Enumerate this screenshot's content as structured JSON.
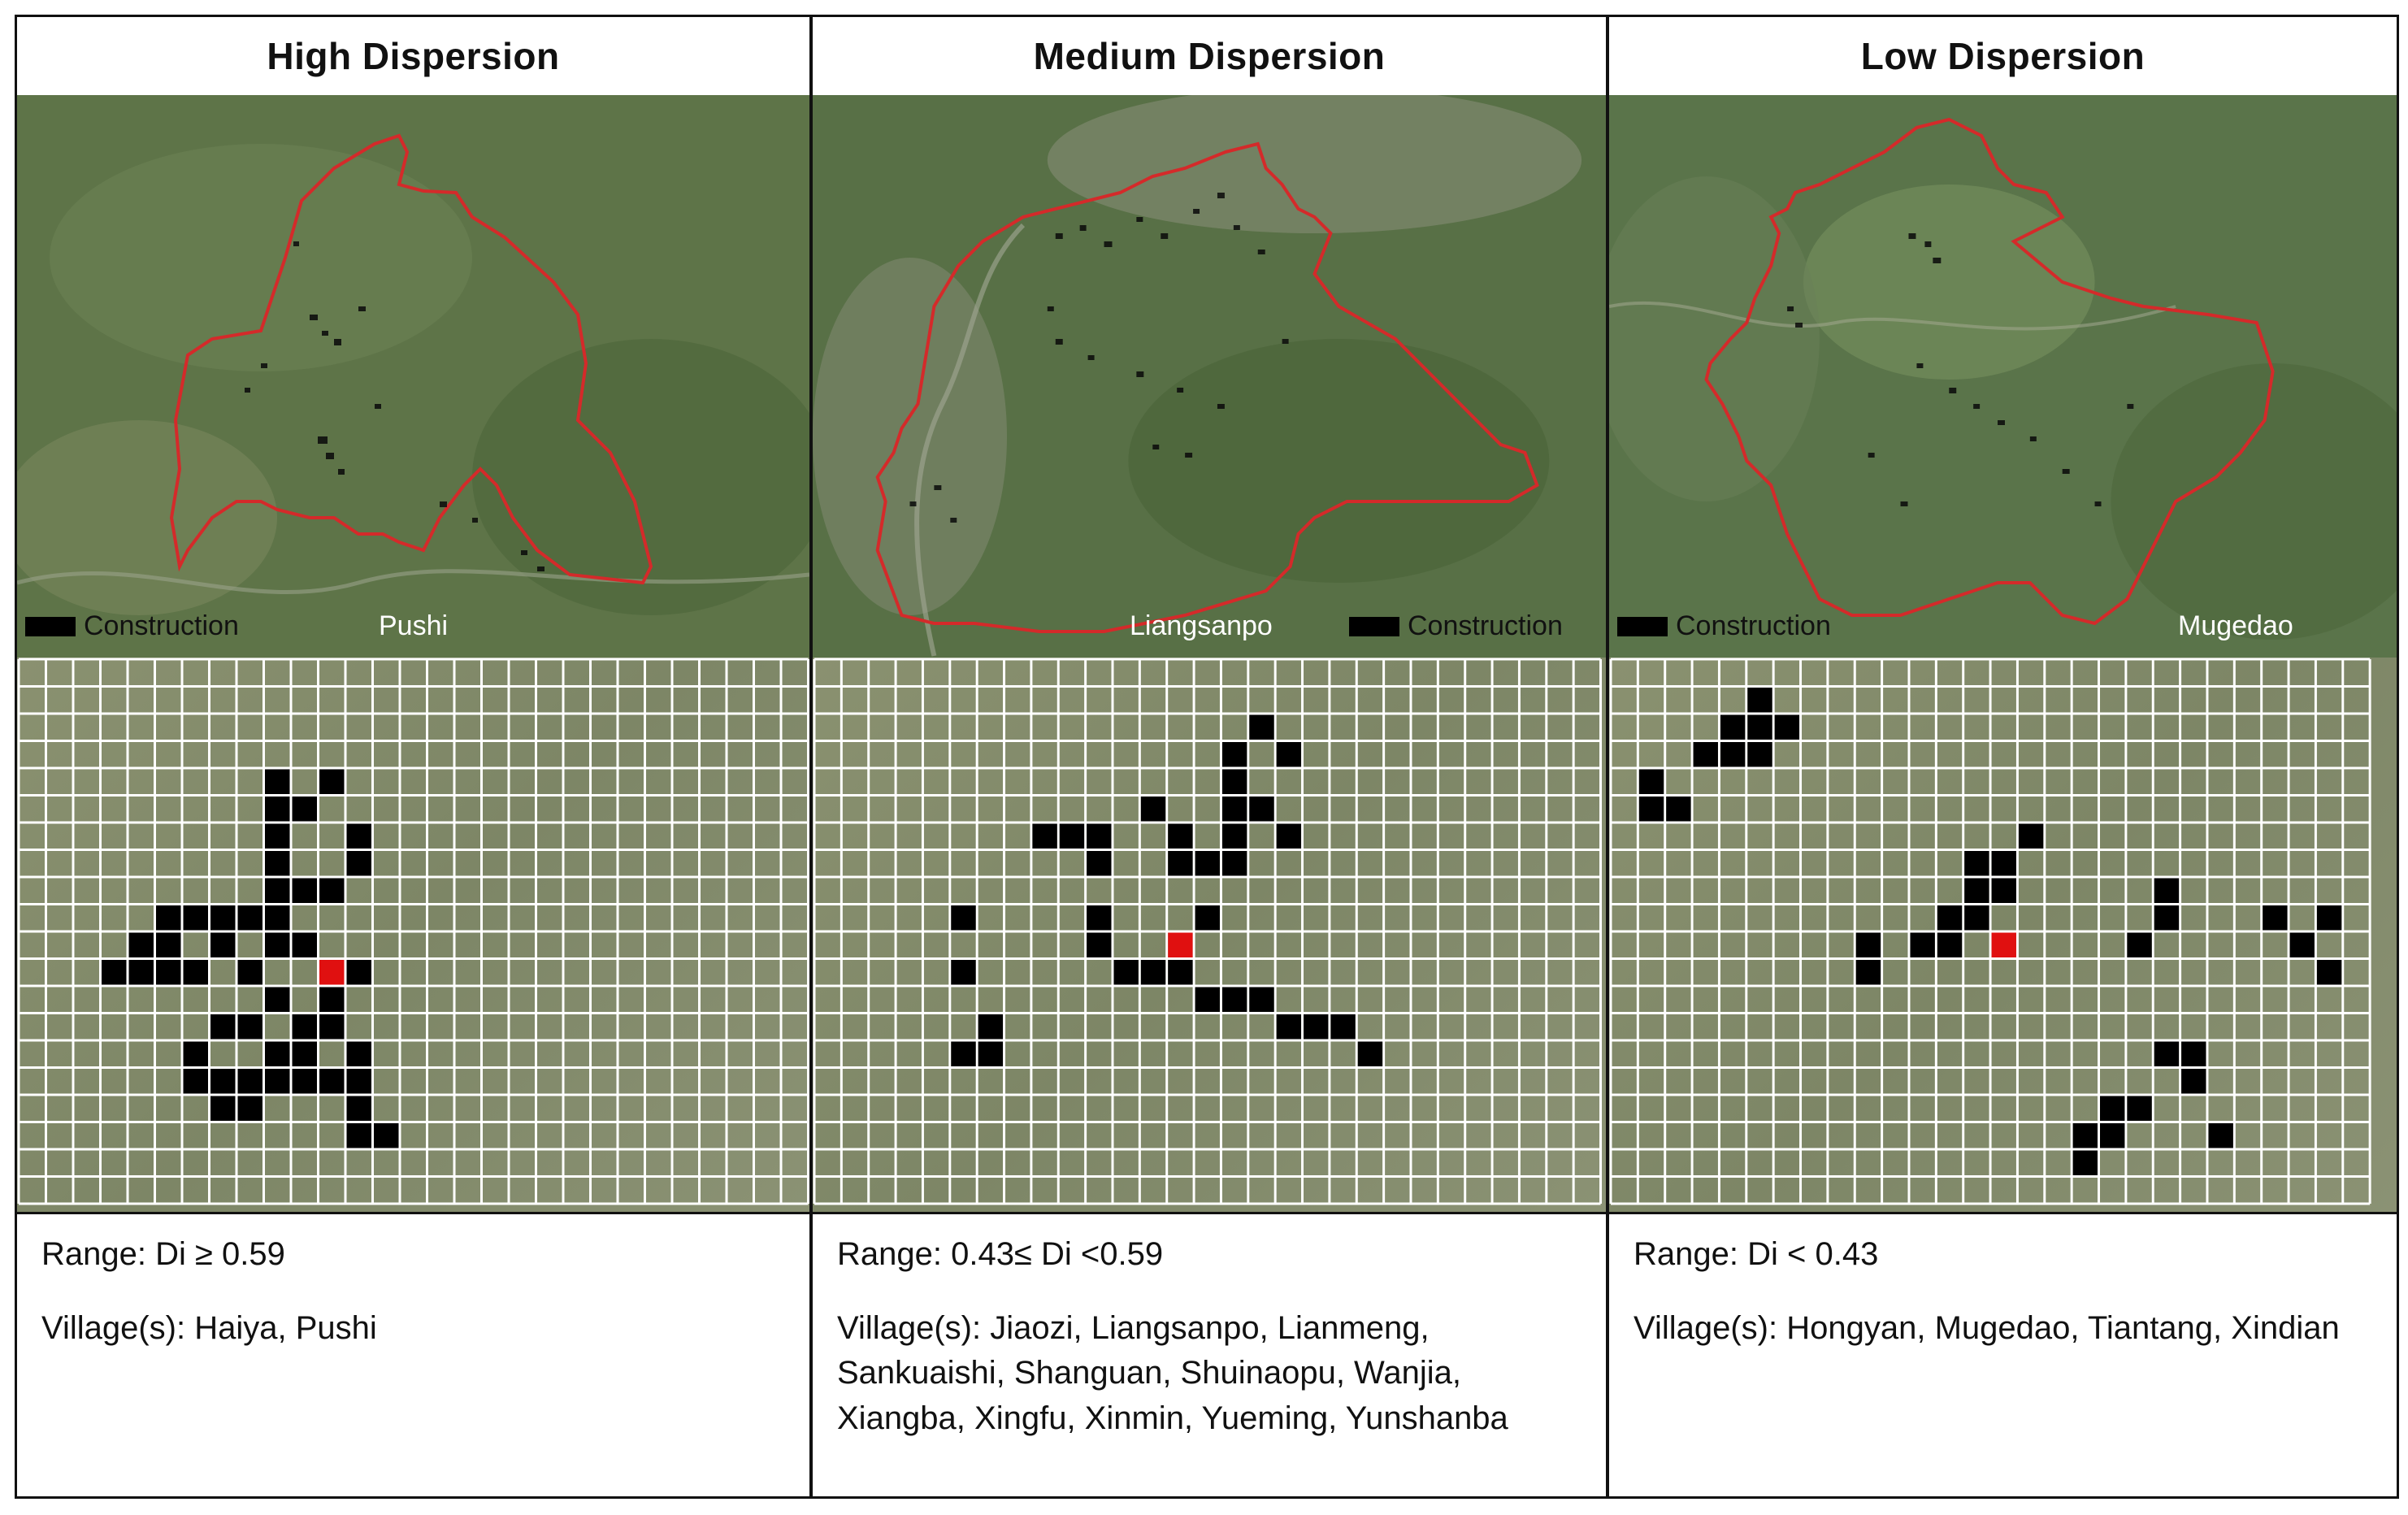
{
  "colors": {
    "boundary": "#d42a2a",
    "construction": "#000000",
    "center_cell": "#e01010",
    "grid_line": "#ffffff"
  },
  "panels": [
    {
      "title": "High Dispersion",
      "legend_label": "Construction",
      "village_label": "Pushi",
      "range": "Range: Di ≥ 0.59",
      "villages": "Village(s): Haiya, Pushi",
      "center_cell": [
        11,
        11
      ],
      "filled_cells": [
        [
          9,
          4
        ],
        [
          11,
          4
        ],
        [
          9,
          5
        ],
        [
          10,
          5
        ],
        [
          9,
          6
        ],
        [
          12,
          6
        ],
        [
          9,
          7
        ],
        [
          12,
          7
        ],
        [
          9,
          8
        ],
        [
          10,
          8
        ],
        [
          11,
          8
        ],
        [
          5,
          9
        ],
        [
          6,
          9
        ],
        [
          7,
          9
        ],
        [
          8,
          9
        ],
        [
          9,
          9
        ],
        [
          4,
          10
        ],
        [
          5,
          10
        ],
        [
          7,
          10
        ],
        [
          9,
          10
        ],
        [
          10,
          10
        ],
        [
          3,
          11
        ],
        [
          4,
          11
        ],
        [
          5,
          11
        ],
        [
          6,
          11
        ],
        [
          8,
          11
        ],
        [
          12,
          11
        ],
        [
          9,
          12
        ],
        [
          11,
          12
        ],
        [
          7,
          13
        ],
        [
          8,
          13
        ],
        [
          10,
          13
        ],
        [
          11,
          13
        ],
        [
          6,
          14
        ],
        [
          9,
          14
        ],
        [
          10,
          14
        ],
        [
          12,
          14
        ],
        [
          6,
          15
        ],
        [
          7,
          15
        ],
        [
          8,
          15
        ],
        [
          9,
          15
        ],
        [
          10,
          15
        ],
        [
          11,
          15
        ],
        [
          12,
          15
        ],
        [
          7,
          16
        ],
        [
          8,
          16
        ],
        [
          12,
          16
        ],
        [
          12,
          17
        ],
        [
          13,
          17
        ]
      ]
    },
    {
      "title": "Medium Dispersion",
      "legend_label": "Construction",
      "village_label": "Liangsanpo",
      "range": "Range: 0.43≤ Di <0.59",
      "villages": "Village(s): Jiaozi, Liangsanpo, Lianmeng, Sankuaishi, Shanguan, Shuinaopu, Wanjia, Xiangba, Xingfu, Xinmin, Yueming, Yunshanba",
      "center_cell": [
        13,
        10
      ],
      "filled_cells": [
        [
          16,
          2
        ],
        [
          15,
          3
        ],
        [
          17,
          3
        ],
        [
          15,
          4
        ],
        [
          12,
          5
        ],
        [
          15,
          5
        ],
        [
          16,
          5
        ],
        [
          8,
          6
        ],
        [
          9,
          6
        ],
        [
          10,
          6
        ],
        [
          13,
          6
        ],
        [
          15,
          6
        ],
        [
          17,
          6
        ],
        [
          10,
          7
        ],
        [
          13,
          7
        ],
        [
          14,
          7
        ],
        [
          15,
          7
        ],
        [
          5,
          9
        ],
        [
          10,
          9
        ],
        [
          14,
          9
        ],
        [
          10,
          10
        ],
        [
          5,
          11
        ],
        [
          11,
          11
        ],
        [
          12,
          11
        ],
        [
          13,
          11
        ],
        [
          14,
          12
        ],
        [
          15,
          12
        ],
        [
          16,
          12
        ],
        [
          6,
          13
        ],
        [
          17,
          13
        ],
        [
          18,
          13
        ],
        [
          19,
          13
        ],
        [
          5,
          14
        ],
        [
          6,
          14
        ],
        [
          20,
          14
        ]
      ]
    },
    {
      "title": "Low Dispersion",
      "legend_label": "Construction",
      "village_label": "Mugedao",
      "range": "Range: Di < 0.43",
      "villages": "Village(s): Hongyan, Mugedao, Tiantang, Xindian",
      "center_cell": [
        14,
        10
      ],
      "filled_cells": [
        [
          5,
          1
        ],
        [
          4,
          2
        ],
        [
          5,
          2
        ],
        [
          6,
          2
        ],
        [
          3,
          3
        ],
        [
          4,
          3
        ],
        [
          5,
          3
        ],
        [
          1,
          4
        ],
        [
          1,
          5
        ],
        [
          2,
          5
        ],
        [
          15,
          6
        ],
        [
          13,
          7
        ],
        [
          14,
          7
        ],
        [
          13,
          8
        ],
        [
          14,
          8
        ],
        [
          20,
          8
        ],
        [
          12,
          9
        ],
        [
          13,
          9
        ],
        [
          20,
          9
        ],
        [
          24,
          9
        ],
        [
          26,
          9
        ],
        [
          11,
          10
        ],
        [
          12,
          10
        ],
        [
          9,
          10
        ],
        [
          19,
          10
        ],
        [
          25,
          10
        ],
        [
          9,
          11
        ],
        [
          26,
          11
        ],
        [
          20,
          14
        ],
        [
          21,
          14
        ],
        [
          21,
          15
        ],
        [
          18,
          16
        ],
        [
          19,
          16
        ],
        [
          17,
          17
        ],
        [
          18,
          17
        ],
        [
          22,
          17
        ],
        [
          17,
          18
        ]
      ]
    }
  ]
}
